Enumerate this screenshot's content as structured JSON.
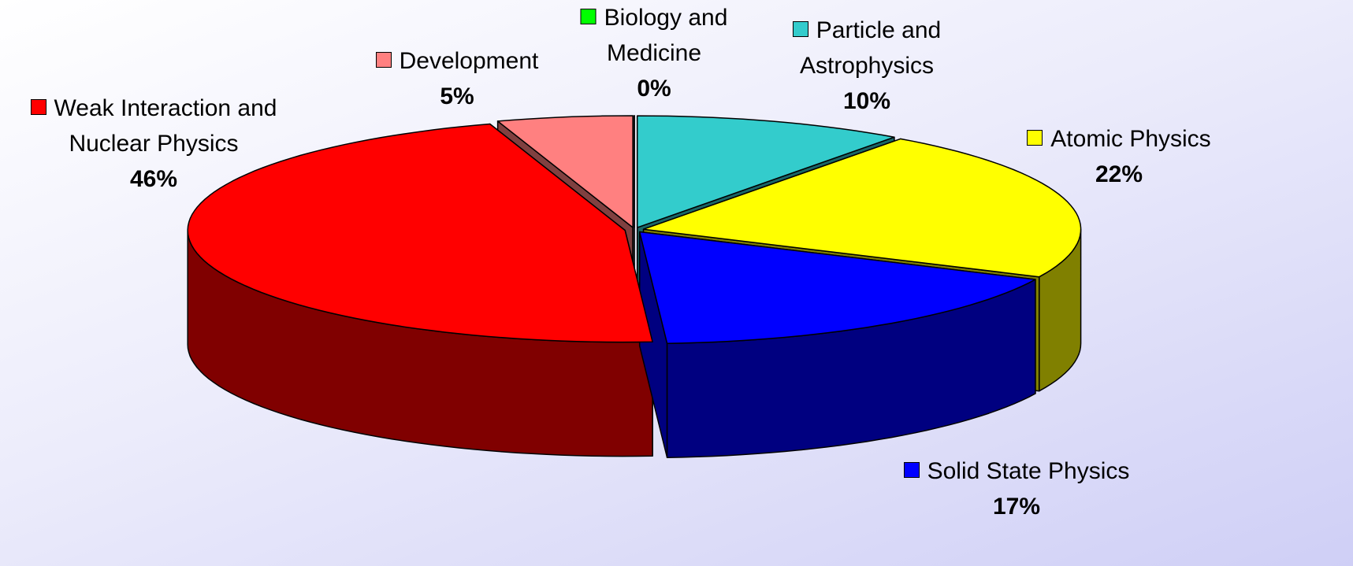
{
  "chart_data": {
    "type": "pie3d",
    "categories": [
      "Particle and Astrophysics",
      "Atomic Physics",
      "Solid State Physics",
      "Weak Interaction and Nuclear Physics",
      "Development",
      "Biology and Medicine"
    ],
    "values": [
      10,
      22,
      17,
      46,
      5,
      0
    ],
    "value_labels": [
      "10%",
      "22%",
      "17%",
      "46%",
      "5%",
      "0%"
    ],
    "colors": [
      "#33cccc",
      "#ffff00",
      "#0000ff",
      "#ff0000",
      "#ff8080",
      "#00ff00"
    ]
  }
}
